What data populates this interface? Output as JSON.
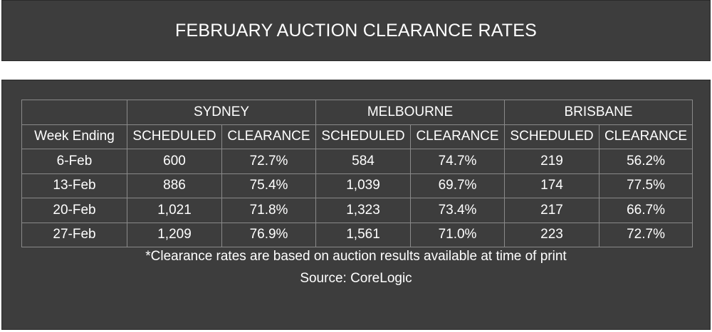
{
  "chart_data": {
    "type": "table",
    "title": "FEBRUARY AUCTION CLEARANCE RATES",
    "cities": [
      "SYDNEY",
      "MELBOURNE",
      "BRISBANE"
    ],
    "row_header": "Week Ending",
    "sub_headers": [
      "SCHEDULED",
      "CLEARANCE"
    ],
    "rows": [
      {
        "week": "6-Feb",
        "values": [
          "600",
          "72.7%",
          "584",
          "74.7%",
          "219",
          "56.2%"
        ]
      },
      {
        "week": "13-Feb",
        "values": [
          "886",
          "75.4%",
          "1,039",
          "69.7%",
          "174",
          "77.5%"
        ]
      },
      {
        "week": "20-Feb",
        "values": [
          "1,021",
          "71.8%",
          "1,323",
          "73.4%",
          "217",
          "66.7%"
        ]
      },
      {
        "week": "27-Feb",
        "values": [
          "1,209",
          "76.9%",
          "1,561",
          "71.0%",
          "223",
          "72.7%"
        ]
      }
    ],
    "note": "*Clearance rates are based on auction results available at time of print",
    "source": "Source: CoreLogic"
  }
}
